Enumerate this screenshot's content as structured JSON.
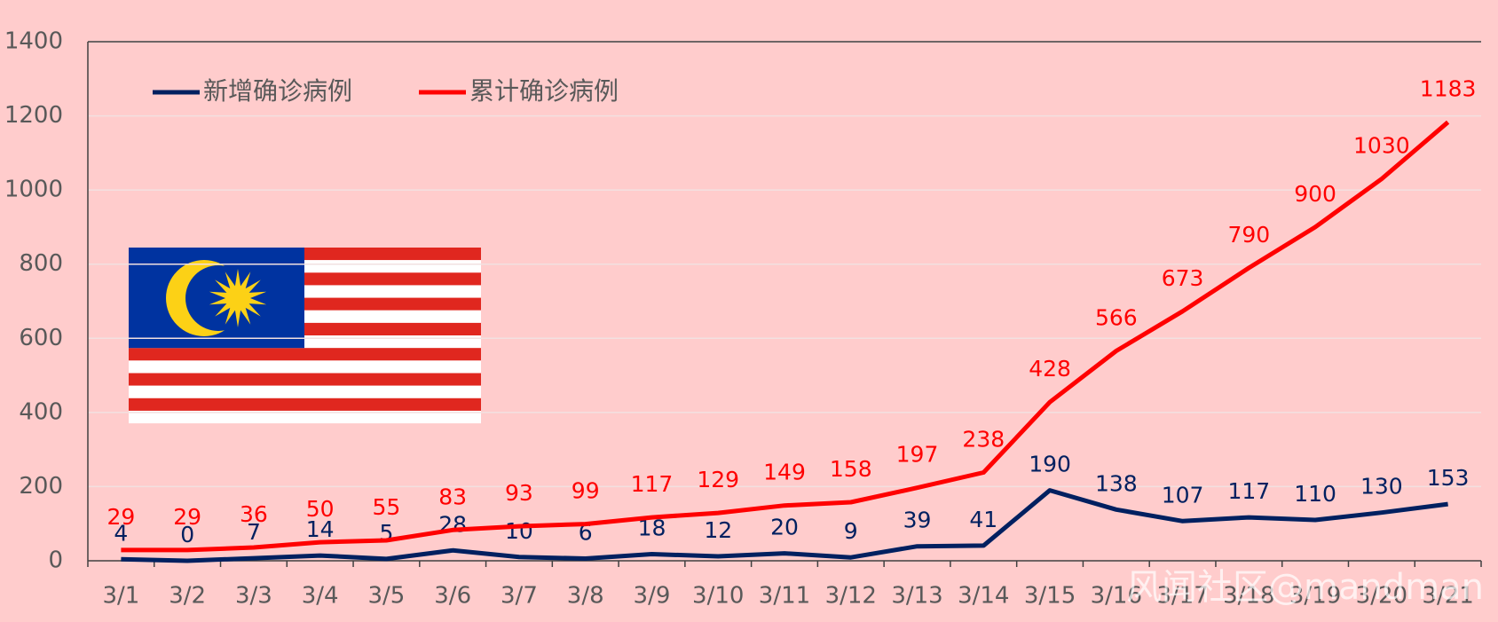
{
  "chart_data": {
    "type": "line",
    "categories": [
      "3/1",
      "3/2",
      "3/3",
      "3/4",
      "3/5",
      "3/6",
      "3/7",
      "3/8",
      "3/9",
      "3/10",
      "3/11",
      "3/12",
      "3/13",
      "3/14",
      "3/15",
      "3/16",
      "3/17",
      "3/18",
      "3/19",
      "3/20",
      "3/21"
    ],
    "series": [
      {
        "name": "新增确诊病例",
        "color": "#002060",
        "values": [
          4,
          0,
          7,
          14,
          5,
          28,
          10,
          6,
          18,
          12,
          20,
          9,
          39,
          41,
          190,
          138,
          107,
          117,
          110,
          130,
          153
        ]
      },
      {
        "name": "累计确诊病例",
        "color": "#ff0000",
        "values": [
          29,
          29,
          36,
          50,
          55,
          83,
          93,
          99,
          117,
          129,
          149,
          158,
          197,
          238,
          428,
          566,
          673,
          790,
          900,
          1030,
          1183
        ]
      }
    ],
    "ylim": [
      0,
      1400
    ],
    "yticks": [
      0,
      200,
      400,
      600,
      800,
      1000,
      1200,
      1400
    ],
    "grid": true,
    "watermark": "风闻社区@mandman"
  }
}
